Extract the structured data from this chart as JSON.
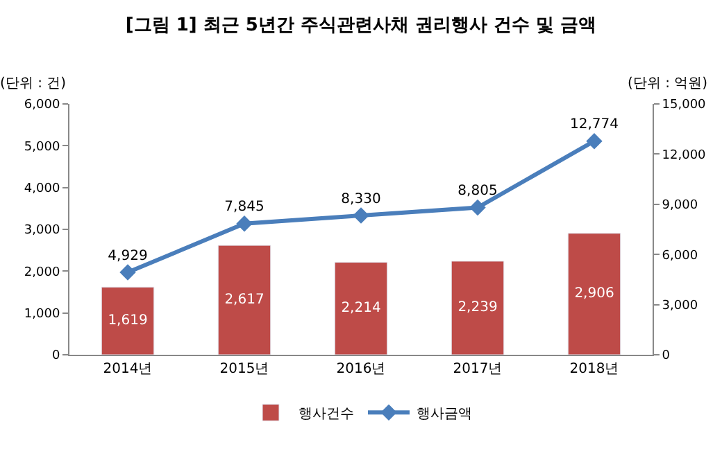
{
  "chart_data": {
    "type": "bar",
    "title": "[그림 1] 최근 5년간 주식관련사채 권리행사 건수 및 금액",
    "ylabel": "(단위 : 건)",
    "y2label": "(단위 : 억원)",
    "categories": [
      "2014년",
      "2015년",
      "2016년",
      "2017년",
      "2018년"
    ],
    "series": [
      {
        "name": "행사건수",
        "color": "#be4b48",
        "values": [
          1619,
          2617,
          2214,
          2239,
          2906
        ],
        "value_labels": [
          "1,619",
          "2,617",
          "2,214",
          "2,239",
          "2,906"
        ]
      },
      {
        "name": "행사금액",
        "type": "line",
        "axis": "y2",
        "color": "#4a7ebb",
        "marker": "diamond",
        "values": [
          4929,
          7845,
          8330,
          8805,
          12774
        ],
        "value_labels": [
          "4,929",
          "7,845",
          "8,330",
          "8,805",
          "12,774"
        ]
      }
    ],
    "ylim": [
      0,
      6000
    ],
    "yticks": [
      0,
      {
        "value": 1000,
        "label": "1,000"
      },
      {
        "value": 2000,
        "label": "2,000"
      },
      {
        "value": 3000,
        "label": "3,000"
      },
      {
        "value": 4000,
        "label": "4,000"
      },
      {
        "value": 5000,
        "label": "5,000"
      },
      {
        "value": 6000,
        "label": "6,000"
      }
    ],
    "y2lim": [
      0,
      15000
    ],
    "y2ticks": [
      0,
      {
        "value": 3000,
        "label": "3,000"
      },
      {
        "value": 6000,
        "label": "6,000"
      },
      {
        "value": 9000,
        "label": "9,000"
      },
      {
        "value": 12000,
        "label": "12,000"
      },
      {
        "value": 15000,
        "label": "15,000"
      }
    ],
    "legend": "bottom"
  }
}
